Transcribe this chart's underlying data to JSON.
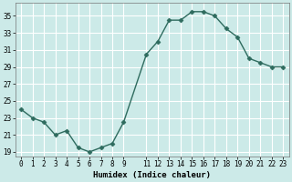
{
  "x": [
    0,
    1,
    2,
    3,
    4,
    5,
    6,
    7,
    8,
    9,
    11,
    12,
    13,
    14,
    15,
    16,
    17,
    18,
    19,
    20,
    21,
    22,
    23
  ],
  "y": [
    24,
    23,
    22.5,
    21,
    21.5,
    19.5,
    19,
    19.5,
    20,
    22.5,
    30.5,
    32,
    34.5,
    34.5,
    35.5,
    35.5,
    35,
    33.5,
    32.5,
    30,
    29.5,
    29,
    29
  ],
  "xlabel": "Humidex (Indice chaleur)",
  "xlim": [
    -0.5,
    23.5
  ],
  "ylim": [
    18.5,
    36.5
  ],
  "yticks": [
    19,
    21,
    23,
    25,
    27,
    29,
    31,
    33,
    35
  ],
  "xtick_positions": [
    0,
    1,
    2,
    3,
    4,
    5,
    6,
    7,
    8,
    9,
    11,
    12,
    13,
    14,
    15,
    16,
    17,
    18,
    19,
    20,
    21,
    22,
    23
  ],
  "xtick_labels": [
    "0",
    "1",
    "2",
    "3",
    "4",
    "5",
    "6",
    "7",
    "8",
    "9",
    "11",
    "12",
    "13",
    "14",
    "15",
    "16",
    "17",
    "18",
    "19",
    "20",
    "21",
    "22",
    "23"
  ],
  "line_color": "#2e6b5e",
  "bg_color": "#cceae8",
  "grid_color": "#ffffff",
  "marker_size": 2.5,
  "line_width": 1.0
}
